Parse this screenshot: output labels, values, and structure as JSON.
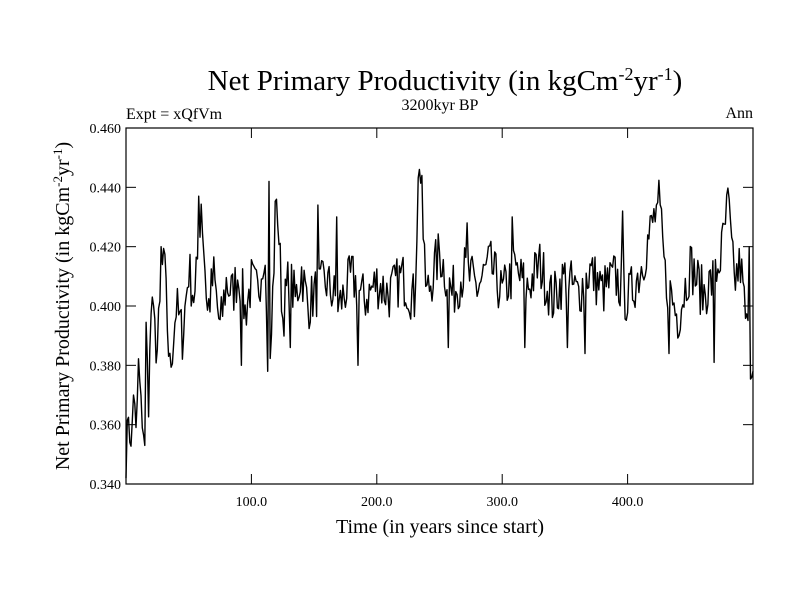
{
  "chart_data": {
    "type": "line",
    "title": {
      "main": "Net Primary Productivity (in kgCm",
      "sup1": "-2",
      "mid": "yr",
      "sup2": "-1",
      "end": ")"
    },
    "left_label": "Expt = xQfVm",
    "center_label": "3200kyr BP",
    "right_label": "Ann",
    "xlabel": "Time (in years since start)",
    "ylabel": {
      "main": "Net Primary Productivity (in kgCm",
      "sup1": "-2",
      "mid": "yr",
      "sup2": "-1",
      "end": ")"
    },
    "xlim": [
      0,
      500
    ],
    "ylim": [
      0.34,
      0.46
    ],
    "xticks": [
      100,
      200,
      300,
      400
    ],
    "xtick_labels": [
      "100.0",
      "200.0",
      "300.0",
      "400.0"
    ],
    "yticks": [
      0.34,
      0.36,
      0.38,
      0.4,
      0.42,
      0.44,
      0.46
    ],
    "ytick_labels": [
      "0.340",
      "0.360",
      "0.380",
      "0.400",
      "0.420",
      "0.440",
      "0.460"
    ],
    "grid": false,
    "anchors": [
      [
        0,
        0.348
      ],
      [
        2,
        0.365
      ],
      [
        4,
        0.35
      ],
      [
        6,
        0.372
      ],
      [
        8,
        0.356
      ],
      [
        10,
        0.38
      ],
      [
        12,
        0.366
      ],
      [
        14,
        0.358
      ],
      [
        16,
        0.392
      ],
      [
        18,
        0.368
      ],
      [
        20,
        0.398
      ],
      [
        25,
        0.385
      ],
      [
        30,
        0.418
      ],
      [
        35,
        0.378
      ],
      [
        40,
        0.4
      ],
      [
        45,
        0.39
      ],
      [
        50,
        0.412
      ],
      [
        55,
        0.402
      ],
      [
        60,
        0.436
      ],
      [
        65,
        0.398
      ],
      [
        70,
        0.41
      ],
      [
        75,
        0.392
      ],
      [
        80,
        0.408
      ],
      [
        85,
        0.404
      ],
      [
        90,
        0.412
      ],
      [
        95,
        0.398
      ],
      [
        100,
        0.408
      ],
      [
        105,
        0.404
      ],
      [
        110,
        0.42
      ],
      [
        115,
        0.378
      ],
      [
        120,
        0.441
      ],
      [
        125,
        0.396
      ],
      [
        130,
        0.41
      ],
      [
        135,
        0.402
      ],
      [
        140,
        0.412
      ],
      [
        145,
        0.4
      ],
      [
        150,
        0.404
      ],
      [
        160,
        0.408
      ],
      [
        170,
        0.4
      ],
      [
        180,
        0.41
      ],
      [
        190,
        0.402
      ],
      [
        200,
        0.408
      ],
      [
        210,
        0.404
      ],
      [
        220,
        0.41
      ],
      [
        230,
        0.402
      ],
      [
        233,
        0.44
      ],
      [
        235,
        0.446
      ],
      [
        238,
        0.412
      ],
      [
        240,
        0.404
      ],
      [
        250,
        0.418
      ],
      [
        260,
        0.404
      ],
      [
        270,
        0.412
      ],
      [
        280,
        0.406
      ],
      [
        290,
        0.414
      ],
      [
        300,
        0.404
      ],
      [
        310,
        0.412
      ],
      [
        320,
        0.406
      ],
      [
        330,
        0.414
      ],
      [
        340,
        0.402
      ],
      [
        350,
        0.41
      ],
      [
        360,
        0.404
      ],
      [
        370,
        0.412
      ],
      [
        380,
        0.405
      ],
      [
        390,
        0.41
      ],
      [
        400,
        0.402
      ],
      [
        410,
        0.412
      ],
      [
        420,
        0.428
      ],
      [
        425,
        0.434
      ],
      [
        430,
        0.41
      ],
      [
        440,
        0.396
      ],
      [
        450,
        0.414
      ],
      [
        460,
        0.404
      ],
      [
        470,
        0.41
      ],
      [
        475,
        0.418
      ],
      [
        480,
        0.434
      ],
      [
        485,
        0.408
      ],
      [
        490,
        0.414
      ],
      [
        495,
        0.392
      ],
      [
        500,
        0.378
      ]
    ],
    "spikes": [
      [
        15,
        0.353
      ],
      [
        22,
        0.4
      ],
      [
        28,
        0.42
      ],
      [
        58,
        0.437
      ],
      [
        92,
        0.38
      ],
      [
        113,
        0.378
      ],
      [
        114,
        0.442
      ],
      [
        120,
        0.436
      ],
      [
        131,
        0.386
      ],
      [
        153,
        0.434
      ],
      [
        168,
        0.43
      ],
      [
        185,
        0.38
      ],
      [
        234,
        0.446
      ],
      [
        236,
        0.444
      ],
      [
        257,
        0.386
      ],
      [
        272,
        0.428
      ],
      [
        308,
        0.43
      ],
      [
        318,
        0.386
      ],
      [
        352,
        0.386
      ],
      [
        366,
        0.384
      ],
      [
        396,
        0.432
      ],
      [
        423,
        0.434
      ],
      [
        433,
        0.384
      ],
      [
        469,
        0.381
      ],
      [
        481,
        0.436
      ],
      [
        497,
        0.42
      ],
      [
        500,
        0.378
      ]
    ]
  }
}
